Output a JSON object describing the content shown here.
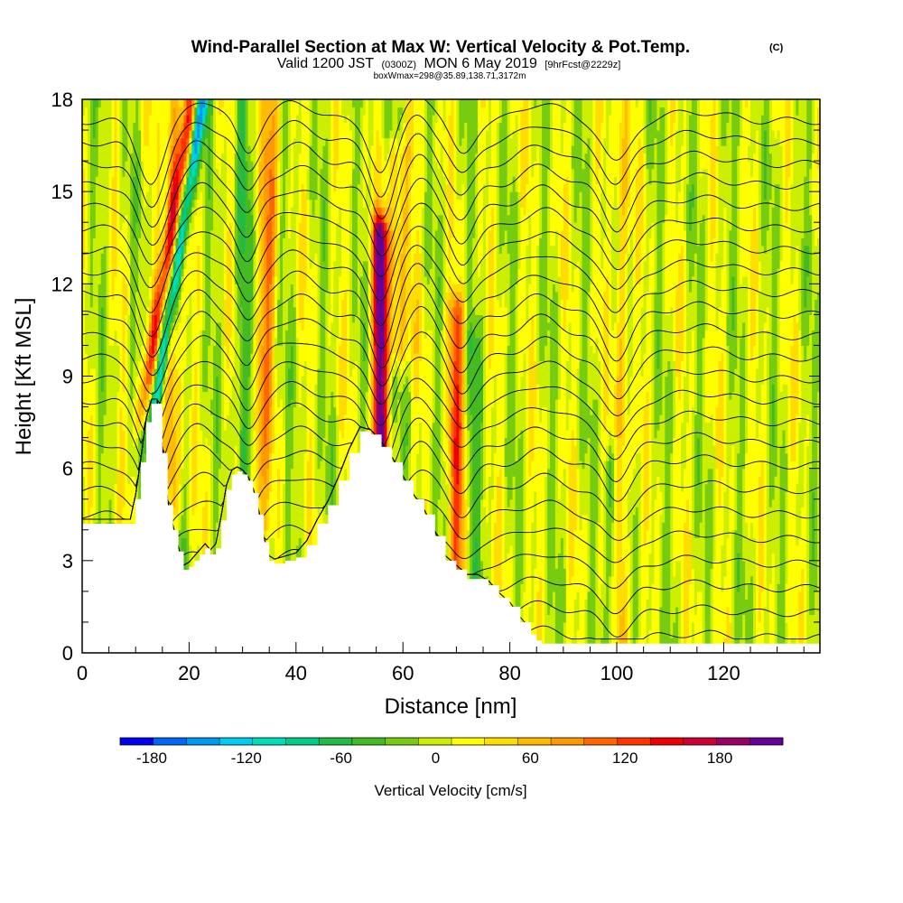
{
  "chart_data": {
    "type": "heatmap",
    "title": "Wind-Parallel Section at Max W: Vertical Velocity & Pot.Temp.",
    "title_mark": "(C)",
    "subtitle_parts": [
      "Valid 1200 JST",
      "(0300Z)",
      "MON 6 May 2019",
      "[9hrFcst@2229z]"
    ],
    "subtitle2": "boxWmax=298@35.89,138.71,3172m",
    "xlabel": "Distance [nm]",
    "ylabel": "Height [Kft MSL]",
    "xlim": [
      0,
      138
    ],
    "ylim": [
      0,
      18
    ],
    "x_ticks": [
      0,
      20,
      40,
      60,
      80,
      100,
      120
    ],
    "y_ticks": [
      0,
      3,
      6,
      9,
      12,
      15,
      18
    ],
    "colorbar": {
      "label": "Vertical Velocity [cm/s]",
      "ticks": [
        -180,
        -120,
        -60,
        0,
        60,
        120,
        180
      ],
      "min": -200,
      "max": 220,
      "colors": [
        "#0000ee",
        "#0066f5",
        "#0099ee",
        "#00ccee",
        "#00ddbb",
        "#00cc88",
        "#22bb44",
        "#44bb22",
        "#77cc11",
        "#ccee00",
        "#ffff00",
        "#ffdd00",
        "#ffbb00",
        "#ff9900",
        "#ff6600",
        "#ff3300",
        "#ee0000",
        "#cc0033",
        "#990066",
        "#660099"
      ]
    },
    "background_w": 5,
    "w_features": [
      {
        "x": 13.5,
        "z_bottom": 8,
        "z_top": 18,
        "tilt": 0.9,
        "w": -150,
        "width": 1.2
      },
      {
        "x": 11.5,
        "z_bottom": 8,
        "z_top": 18,
        "tilt": 0.9,
        "w": 110,
        "width": 1.4
      },
      {
        "x": 17,
        "z_bottom": 5,
        "z_top": 18,
        "tilt": 0,
        "w": 70,
        "width": 1.5
      },
      {
        "x": 33,
        "z_bottom": 4,
        "z_top": 18,
        "tilt": 0.2,
        "w": 80,
        "width": 1.5
      },
      {
        "x": 30,
        "z_bottom": 5,
        "z_top": 18,
        "tilt": 0,
        "w": -50,
        "width": 1.2
      },
      {
        "x": 55.7,
        "z_bottom": 6,
        "z_top": 13.5,
        "tilt": 0,
        "w": 200,
        "width": 1.3
      },
      {
        "x": 59,
        "z_bottom": 10,
        "z_top": 16,
        "tilt": 0,
        "w": 60,
        "width": 2.5
      },
      {
        "x": 70,
        "z_bottom": 3,
        "z_top": 11,
        "tilt": 0,
        "w": 100,
        "width": 1.6
      },
      {
        "x": 73,
        "z_bottom": 2,
        "z_top": 10,
        "tilt": 0,
        "w": -40,
        "width": 1.4
      },
      {
        "x": 101,
        "z_bottom": 0,
        "z_top": 18,
        "tilt": 0,
        "w": 55,
        "width": 1.3
      },
      {
        "x": 99,
        "z_bottom": 0,
        "z_top": 6,
        "tilt": 0,
        "w": -45,
        "width": 1.2
      }
    ],
    "terrain": {
      "x": [
        0,
        9,
        10,
        11,
        12,
        13,
        14,
        15,
        16,
        17,
        18,
        19,
        20,
        21,
        22,
        23,
        24,
        25,
        26,
        27,
        28,
        29,
        30,
        31,
        32,
        33,
        34,
        35,
        36,
        38,
        40,
        42,
        44,
        46,
        48,
        50,
        52,
        54,
        56,
        58,
        60,
        62,
        64,
        66,
        68,
        70,
        72,
        74,
        76,
        78,
        80,
        82,
        84,
        85,
        86,
        90,
        100,
        110,
        120,
        130,
        138
      ],
      "z": [
        4.2,
        4.2,
        5.0,
        6.2,
        7.5,
        8.1,
        8.1,
        6.5,
        4.8,
        4.0,
        3.3,
        2.7,
        2.8,
        3.0,
        3.2,
        3.4,
        3.2,
        3.4,
        4.3,
        5.3,
        5.8,
        5.9,
        5.8,
        5.6,
        5.2,
        4.5,
        3.6,
        3.0,
        2.9,
        3.0,
        3.1,
        3.5,
        4.2,
        4.8,
        5.6,
        6.5,
        7.2,
        7.1,
        6.7,
        6.2,
        5.6,
        5.0,
        4.5,
        3.8,
        3.0,
        2.7,
        2.4,
        2.4,
        2.2,
        1.8,
        1.5,
        1.0,
        0.6,
        0.4,
        0.3,
        0.3,
        0.3,
        0.3,
        0.3,
        0.3,
        0.3
      ]
    },
    "isentropes": {
      "levels": [
        0.5,
        1.3,
        2.1,
        2.9,
        3.7,
        4.5,
        5.3,
        6.1,
        6.8,
        7.5,
        8.2,
        8.9,
        9.6,
        10.3,
        11.0,
        11.7,
        12.4,
        13.1,
        13.8,
        14.5,
        15.2,
        15.9,
        16.6,
        17.3
      ],
      "perturbations": [
        {
          "x": 13,
          "dz": -2.0,
          "width": 3.5
        },
        {
          "x": 22,
          "dz": 0.7,
          "width": 4
        },
        {
          "x": 31,
          "dz": -1.0,
          "width": 2.5
        },
        {
          "x": 40,
          "dz": 0.6,
          "width": 5
        },
        {
          "x": 56,
          "dz": -1.7,
          "width": 3
        },
        {
          "x": 63,
          "dz": 0.9,
          "width": 3.5
        },
        {
          "x": 71,
          "dz": -1.1,
          "width": 3
        },
        {
          "x": 86,
          "dz": 0.6,
          "width": 5
        },
        {
          "x": 100,
          "dz": -1.4,
          "width": 3.5
        },
        {
          "x": 115,
          "dz": 0.3,
          "width": 7
        }
      ]
    }
  }
}
